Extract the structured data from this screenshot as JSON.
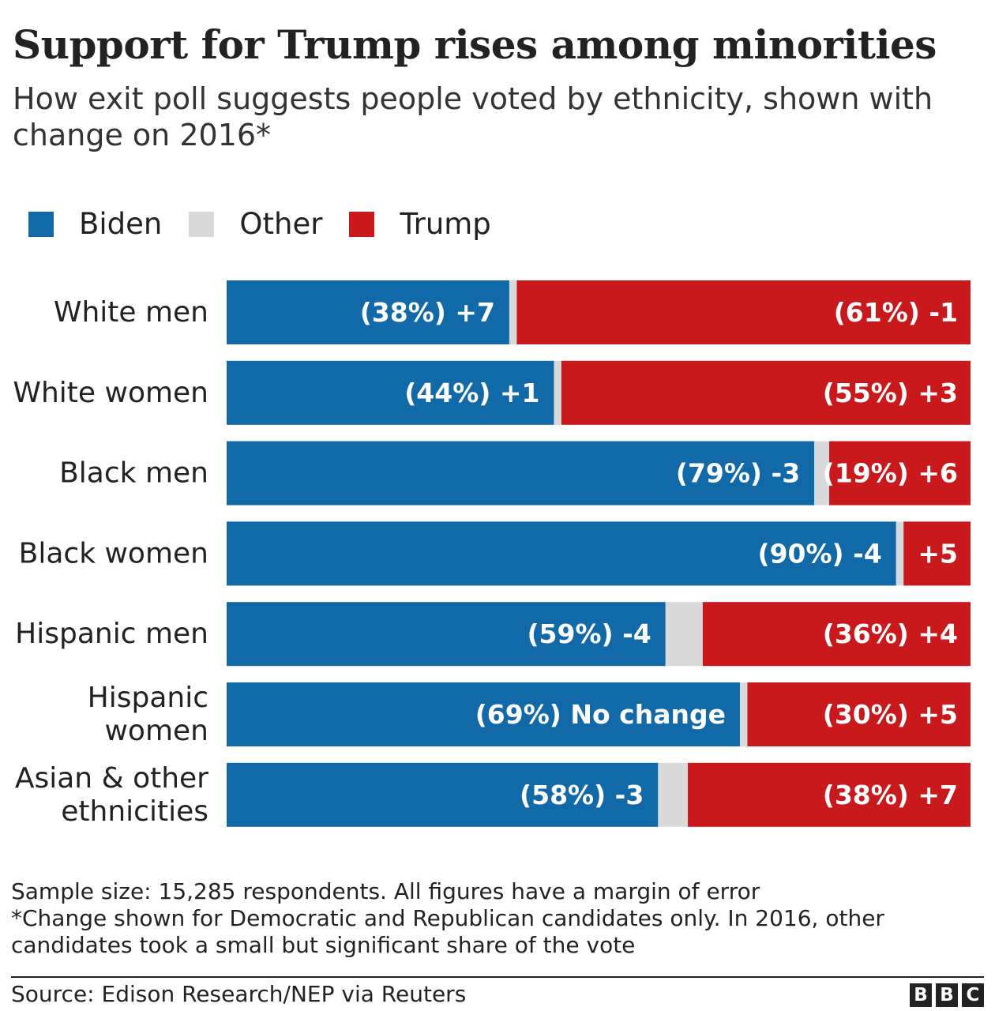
{
  "header": {
    "title": "Support for Trump rises among minorities",
    "subtitle": "How exit poll suggests people voted by ethnicity, shown with change on 2016*"
  },
  "legend": [
    {
      "label": "Biden",
      "color": "#1269a8"
    },
    {
      "label": "Other",
      "color": "#d9d9d9"
    },
    {
      "label": "Trump",
      "color": "#c9191d"
    }
  ],
  "chart_data": {
    "type": "bar",
    "orientation": "horizontal",
    "stacked": true,
    "xlim": [
      0,
      100
    ],
    "grid": false,
    "legend_position": "top-left",
    "categories": [
      {
        "label_lines": [
          "White men"
        ],
        "biden": 38,
        "other": 1,
        "trump": 61,
        "biden_label": "(38%) +7",
        "trump_label": "(61%) -1"
      },
      {
        "label_lines": [
          "White women"
        ],
        "biden": 44,
        "other": 1,
        "trump": 55,
        "biden_label": "(44%) +1",
        "trump_label": "(55%) +3"
      },
      {
        "label_lines": [
          "Black men"
        ],
        "biden": 79,
        "other": 2,
        "trump": 19,
        "biden_label": "(79%) -3",
        "trump_label": "(19%) +6"
      },
      {
        "label_lines": [
          "Black women"
        ],
        "biden": 90,
        "other": 1,
        "trump": 9,
        "biden_label": "(90%) -4",
        "trump_label": "+5"
      },
      {
        "label_lines": [
          "Hispanic men"
        ],
        "biden": 59,
        "other": 5,
        "trump": 36,
        "biden_label": "(59%) -4",
        "trump_label": "(36%) +4"
      },
      {
        "label_lines": [
          "Hispanic",
          "women"
        ],
        "biden": 69,
        "other": 1,
        "trump": 30,
        "biden_label": "(69%) No change",
        "trump_label": "(30%) +5"
      },
      {
        "label_lines": [
          "Asian & other",
          "ethnicities"
        ],
        "biden": 58,
        "other": 4,
        "trump": 38,
        "biden_label": "(58%) -3",
        "trump_label": "(38%) +7"
      }
    ]
  },
  "notes": [
    "Sample size: 15,285 respondents. All figures have a margin of error",
    "*Change shown for Democratic and Republican candidates only. In 2016, other candidates took a small but significant share of the vote"
  ],
  "footer": {
    "source": "Source: Edison Research/NEP via Reuters",
    "logo_letters": [
      "B",
      "B",
      "C"
    ]
  }
}
